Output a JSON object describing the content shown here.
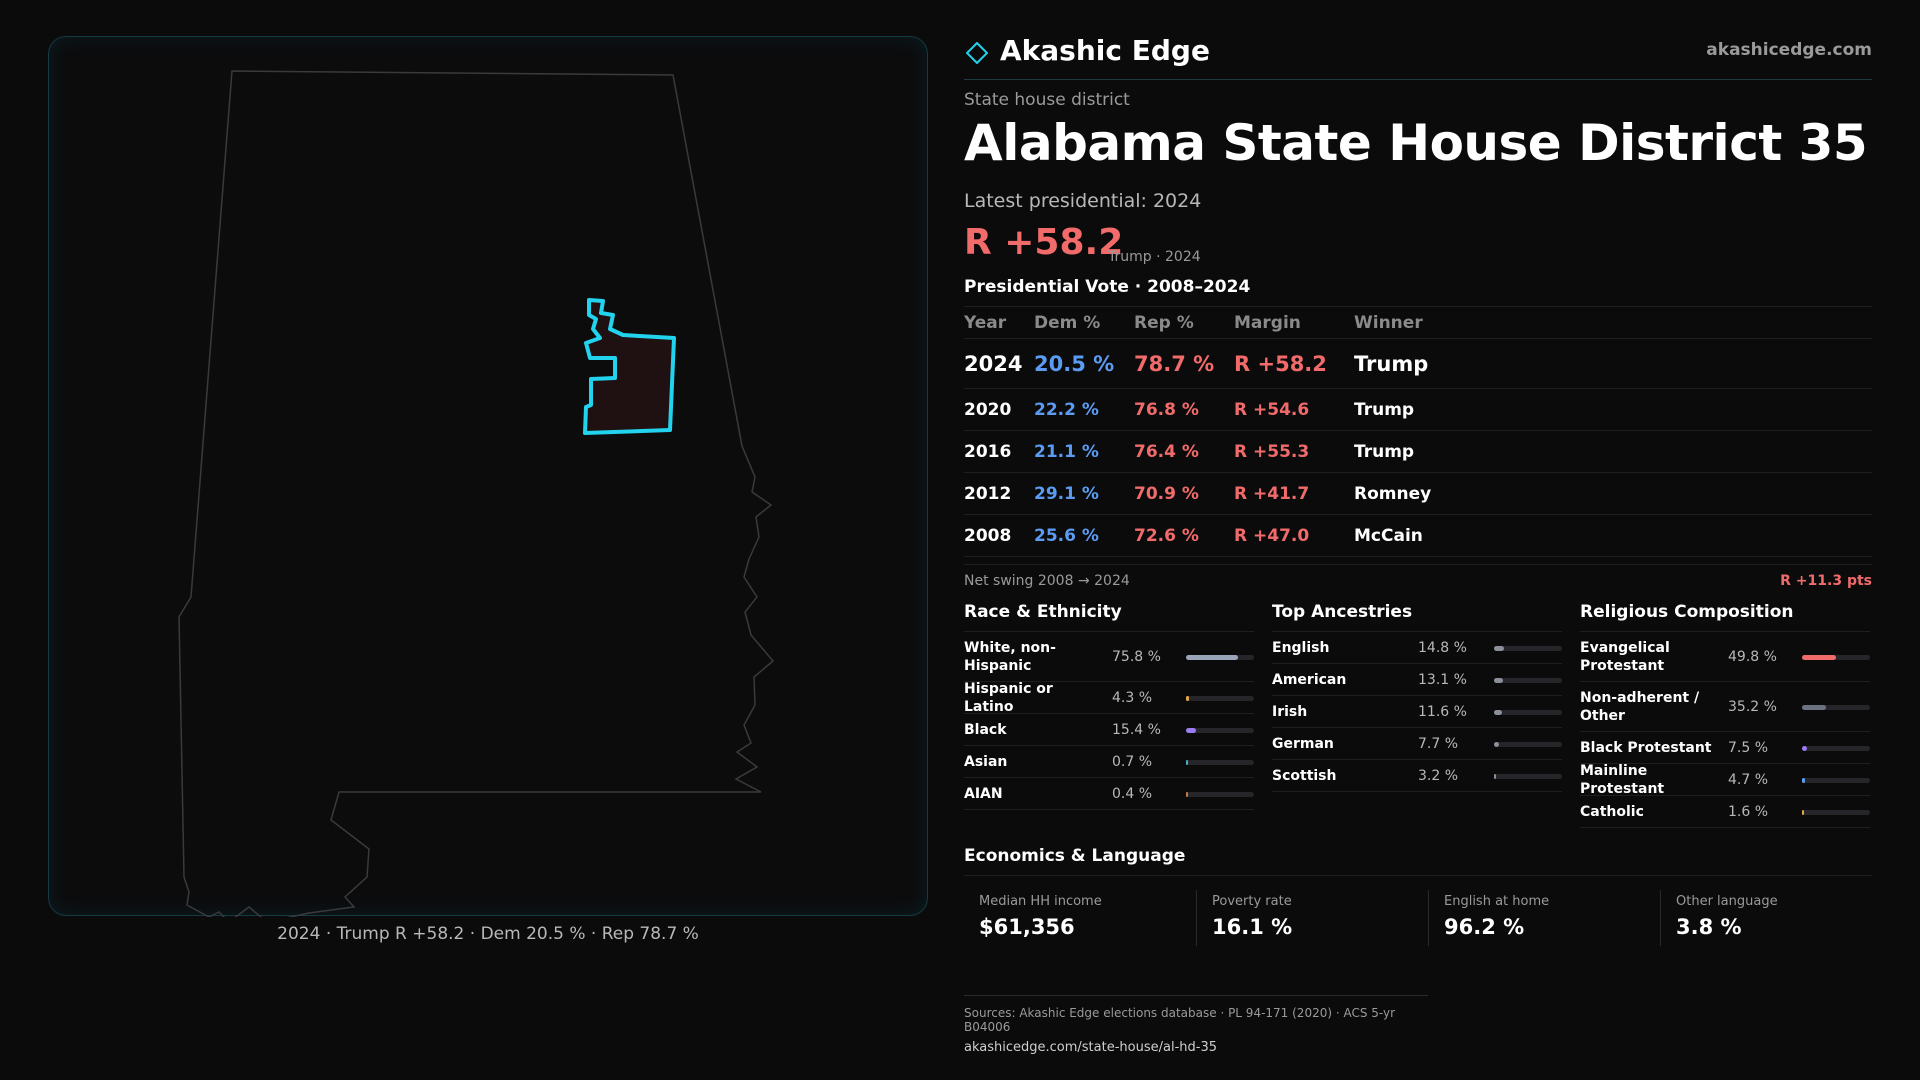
{
  "colors": {
    "accent": "#22d3ee",
    "rep": "#f26b6b",
    "dem": "#5b9cf2",
    "muted": "#9a9a9a"
  },
  "map": {
    "caption": "2024 · Trump R +58.2 · Dem 20.5 % · Rep 78.7 %"
  },
  "brand": {
    "name": "Akashic Edge",
    "url": "akashicedge.com",
    "logo_icon": "diamond-icon"
  },
  "header": {
    "kicker": "State house district",
    "title": "Alabama State House District 35",
    "latest": "Latest presidential: 2024",
    "margin": "R +58.2",
    "margin_sub": "Trump · 2024"
  },
  "vote": {
    "title": "Presidential Vote · 2008–2024",
    "headers": {
      "year": "Year",
      "dem": "Dem %",
      "rep": "Rep %",
      "margin": "Margin",
      "winner": "Winner"
    },
    "rows": [
      {
        "year": "2024",
        "dem": "20.5 %",
        "rep": "78.7 %",
        "margin": "R +58.2",
        "winner": "Trump"
      },
      {
        "year": "2020",
        "dem": "22.2 %",
        "rep": "76.8 %",
        "margin": "R +54.6",
        "winner": "Trump"
      },
      {
        "year": "2016",
        "dem": "21.1 %",
        "rep": "76.4 %",
        "margin": "R +55.3",
        "winner": "Trump"
      },
      {
        "year": "2012",
        "dem": "29.1 %",
        "rep": "70.9 %",
        "margin": "R +41.7",
        "winner": "Romney"
      },
      {
        "year": "2008",
        "dem": "25.6 %",
        "rep": "72.6 %",
        "margin": "R +47.0",
        "winner": "McCain"
      }
    ],
    "swing_label": "Net swing 2008 → 2024",
    "swing_value": "R +11.3 pts"
  },
  "race": {
    "title": "Race & Ethnicity",
    "items": [
      {
        "label": "White, non-Hispanic",
        "value": "75.8 %",
        "share": 0.758,
        "color": "#9aa6b8"
      },
      {
        "label": "Hispanic or Latino",
        "value": "4.3 %",
        "share": 0.043,
        "color": "#e0a84a"
      },
      {
        "label": "Black",
        "value": "15.4 %",
        "share": 0.154,
        "color": "#9b7cf2"
      },
      {
        "label": "Asian",
        "value": "0.7 %",
        "share": 0.007,
        "color": "#4ab0c8"
      },
      {
        "label": "AIAN",
        "value": "0.4 %",
        "share": 0.004,
        "color": "#c0804a"
      }
    ]
  },
  "ancestry": {
    "title": "Top Ancestries",
    "items": [
      {
        "label": "English",
        "value": "14.8 %",
        "share": 0.148,
        "color": "#8a8f99"
      },
      {
        "label": "American",
        "value": "13.1 %",
        "share": 0.131,
        "color": "#8a8f99"
      },
      {
        "label": "Irish",
        "value": "11.6 %",
        "share": 0.116,
        "color": "#8a8f99"
      },
      {
        "label": "German",
        "value": "7.7 %",
        "share": 0.077,
        "color": "#8a8f99"
      },
      {
        "label": "Scottish",
        "value": "3.2 %",
        "share": 0.032,
        "color": "#8a8f99"
      }
    ]
  },
  "religion": {
    "title": "Religious Composition",
    "items": [
      {
        "label": "Evangelical Protestant",
        "value": "49.8 %",
        "share": 0.498,
        "color": "#f26b6b"
      },
      {
        "label": "Non-adherent / Other",
        "value": "35.2 %",
        "share": 0.352,
        "color": "#6b7280"
      },
      {
        "label": "Black Protestant",
        "value": "7.5 %",
        "share": 0.075,
        "color": "#9b7cf2"
      },
      {
        "label": "Mainline Protestant",
        "value": "4.7 %",
        "share": 0.047,
        "color": "#5b9cf2"
      },
      {
        "label": "Catholic",
        "value": "1.6 %",
        "share": 0.016,
        "color": "#e0a84a"
      }
    ]
  },
  "economics": {
    "title": "Economics & Language",
    "cells": [
      {
        "label": "Median HH income",
        "value": "$61,356"
      },
      {
        "label": "Poverty rate",
        "value": "16.1 %"
      },
      {
        "label": "English at home",
        "value": "96.2 %"
      },
      {
        "label": "Other language",
        "value": "3.8 %"
      }
    ]
  },
  "sources": {
    "text": "Sources: Akashic Edge elections database · PL 94-171 (2020) · ACS 5-yr B04006",
    "url": "akashicedge.com/state-house/al-hd-35"
  }
}
